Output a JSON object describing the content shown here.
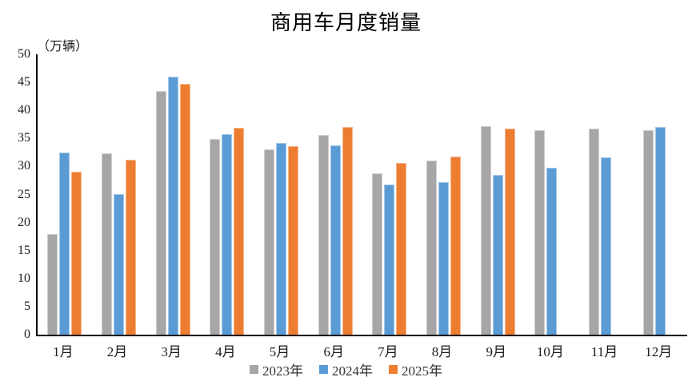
{
  "chart_data": {
    "type": "bar",
    "title": "商用车月度销量",
    "ylabel": "（万辆）",
    "xlabel": "",
    "ylim": [
      0,
      50
    ],
    "y_tick_step": 5,
    "y_ticks": [
      0,
      5,
      10,
      15,
      20,
      25,
      30,
      35,
      40,
      45,
      50
    ],
    "grid": false,
    "legend_position": "bottom",
    "categories": [
      "1月",
      "2月",
      "3月",
      "4月",
      "5月",
      "6月",
      "7月",
      "8月",
      "9月",
      "10月",
      "11月",
      "12月"
    ],
    "series": [
      {
        "name": "2023年",
        "color": "#A6A6A6",
        "values": [
          18.0,
          32.4,
          43.5,
          34.9,
          33.0,
          35.6,
          28.8,
          31.1,
          37.2,
          36.5,
          36.7,
          36.4
        ]
      },
      {
        "name": "2024年",
        "color": "#5B9BD5",
        "values": [
          32.5,
          25.1,
          46.0,
          35.7,
          34.2,
          33.7,
          26.8,
          27.2,
          28.5,
          29.8,
          31.6,
          37.0
        ]
      },
      {
        "name": "2025年",
        "color": "#ED7D31",
        "values": [
          29.0,
          31.2,
          44.8,
          36.9,
          33.6,
          37.0,
          30.6,
          31.8,
          36.8,
          null,
          null,
          null
        ]
      }
    ]
  },
  "axis_colors": {
    "axis_line": "#000000",
    "tick_text": "#1a1a1a"
  }
}
